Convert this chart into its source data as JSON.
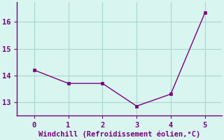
{
  "x": [
    0,
    1,
    2,
    3,
    4,
    5
  ],
  "y": [
    14.2,
    13.7,
    13.7,
    12.85,
    13.3,
    16.35
  ],
  "line_color": "#7b0080",
  "marker": "s",
  "marker_size": 2.5,
  "line_width": 1.0,
  "xlabel": "Windchill (Refroidissement éolien,°C)",
  "xlabel_color": "#7b0080",
  "xlabel_fontsize": 7.5,
  "bg_color": "#d8f5ef",
  "grid_color": "#a8d8cc",
  "tick_color": "#7b0080",
  "spine_color": "#7b0080",
  "ylim": [
    12.5,
    16.75
  ],
  "xlim": [
    -0.5,
    5.5
  ],
  "yticks": [
    13,
    14,
    15,
    16
  ],
  "xticks": [
    0,
    1,
    2,
    3,
    4,
    5
  ],
  "tick_fontsize": 7.5
}
